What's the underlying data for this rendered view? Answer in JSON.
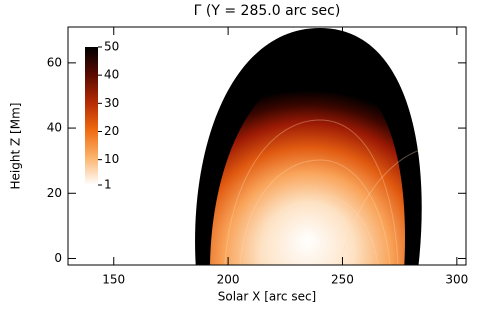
{
  "chart_data": {
    "type": "heatmap",
    "title": "Γ (Y = 285.0 arc sec)",
    "xlabel": "Solar X [arc sec]",
    "ylabel": "Height Z [Mm]",
    "xlim": [
      130,
      304
    ],
    "xticks": [
      150,
      200,
      250,
      300
    ],
    "ylim": [
      -2,
      71
    ],
    "yticks": [
      0,
      20,
      40,
      60
    ],
    "colorbar": {
      "lim": [
        1,
        50
      ],
      "ticks": [
        50,
        40,
        30,
        20,
        10,
        1
      ]
    }
  }
}
